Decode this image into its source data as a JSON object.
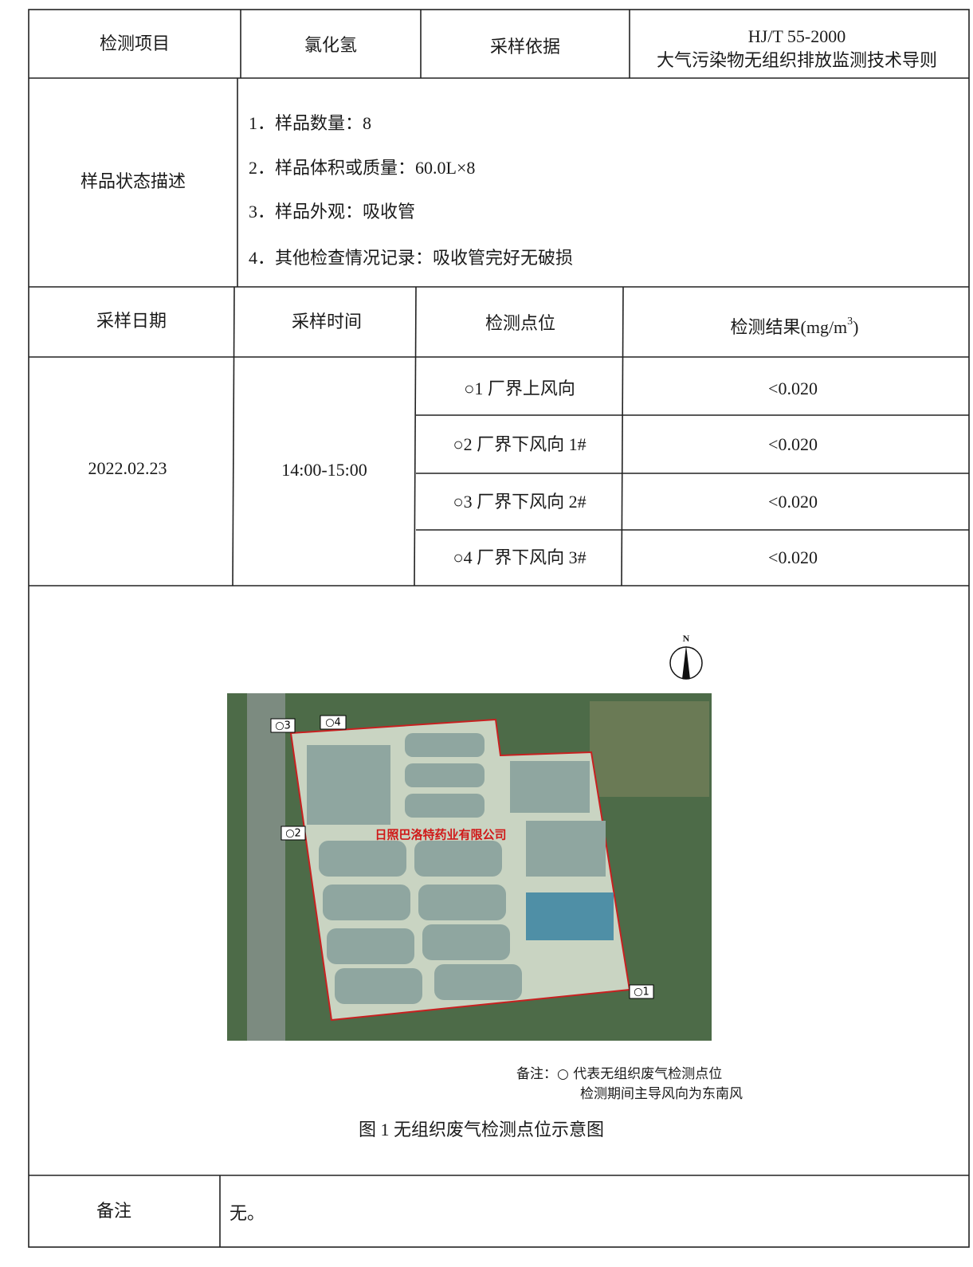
{
  "table": {
    "header": [
      "检测项目",
      "氯化氢",
      "采样依据"
    ],
    "standard": [
      "HJ/T 55-2000",
      "大气污染物无组织排放监测技术导则"
    ],
    "sample_description": {
      "label": "样品状态描述",
      "items": [
        "1．样品数量：8",
        "2．样品体积或质量：60.0L×8",
        "3．样品外观：吸收管",
        "4．其他检查情况记录：吸收管完好无破损"
      ]
    },
    "columns": [
      "采样日期",
      "采样时间",
      "检测点位"
    ],
    "result_header": {
      "text": "检测结果(mg/m",
      "superscript": "3",
      "closing": ")"
    },
    "date": "2022.02.23",
    "time": "14:00-15:00",
    "rows": [
      [
        "○1 厂界上风向",
        "<0.020"
      ],
      [
        "○2 厂界下风向 1#",
        "<0.020"
      ],
      [
        "○3 厂界下风向 2#",
        "<0.020"
      ],
      [
        "○4 厂界下风向 3#",
        "<0.020"
      ]
    ]
  },
  "figure": {
    "north": "N",
    "points": [
      "○1",
      "○2",
      "○3",
      "○4"
    ],
    "company": "日照巴洛特药业有限公司",
    "note": [
      "备注：○ 代表无组织废气检测点位",
      "检测期间主导风向为东南风"
    ],
    "caption": "图 1 无组织废气检测点位示意图"
  },
  "remarks": {
    "label": "备注",
    "text": "无。"
  }
}
